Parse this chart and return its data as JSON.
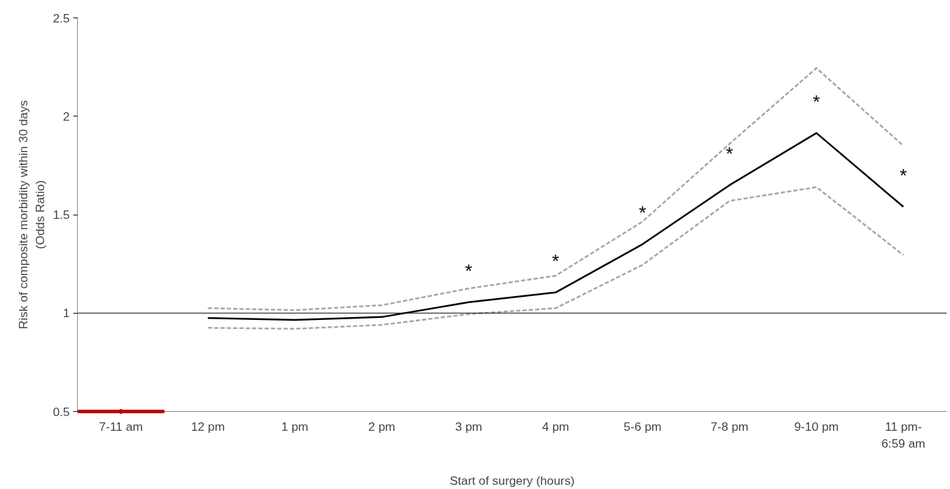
{
  "chart_data": {
    "type": "line",
    "xlabel": "Start of surgery (hours)",
    "ylabel": "Risk of composite morbidity within 30 days\n(Odds Ratio)",
    "categories": [
      "7-11 am",
      "12 pm",
      "1 pm",
      "2 pm",
      "3 pm",
      "4 pm",
      "5-6 pm",
      "7-8 pm",
      "9-10 pm",
      "11 pm-\n6:59 am"
    ],
    "ylim": [
      0.5,
      2.5
    ],
    "yticks": [
      0.5,
      1,
      1.5,
      2,
      2.5
    ],
    "grid": false,
    "series": [
      {
        "color": "#c00000",
        "line_style": "solid",
        "marker": "circle",
        "values": [
          0.5,
          null,
          null,
          null,
          null,
          null,
          null,
          null,
          null,
          null
        ]
      },
      {
        "color": "#a6a6a6",
        "line_style": "dashed",
        "values": [
          null,
          1.025,
          1.015,
          1.04,
          1.125,
          1.19,
          1.465,
          1.86,
          2.245,
          1.85
        ]
      },
      {
        "color": "#a6a6a6",
        "line_style": "dashed",
        "values": [
          null,
          0.925,
          0.92,
          0.94,
          0.995,
          1.025,
          1.245,
          1.57,
          1.64,
          1.295
        ]
      },
      {
        "color": "#000000",
        "line_style": "solid",
        "values": [
          null,
          0.975,
          0.965,
          0.98,
          1.055,
          1.105,
          1.35,
          1.65,
          1.915,
          1.54
        ],
        "value_labels": [
          null,
          null,
          null,
          null,
          "*",
          "*",
          "*",
          "*",
          "*",
          "*"
        ]
      }
    ],
    "ref_lines": [
      {
        "axis": "y",
        "value": 1,
        "color": "#000000",
        "line_style": "solid"
      }
    ]
  }
}
